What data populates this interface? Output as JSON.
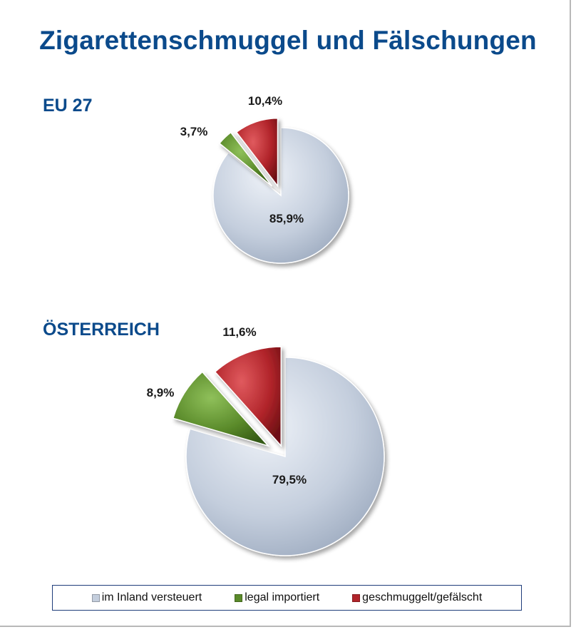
{
  "title": "Zigarettenschmuggel und Fälschungen",
  "chart_data": [
    {
      "type": "pie",
      "title": "EU 27",
      "categories": [
        "im Inland versteuert",
        "legal importiert",
        "geschmuggelt/gefälscht"
      ],
      "values": [
        85.9,
        3.7,
        10.4
      ],
      "labels": [
        "85,9%",
        "3,7%",
        "10,4%"
      ]
    },
    {
      "type": "pie",
      "title": "ÖSTERREICH",
      "categories": [
        "im Inland versteuert",
        "legal importiert",
        "geschmuggelt/gefälscht"
      ],
      "values": [
        79.5,
        8.9,
        11.6
      ],
      "labels": [
        "79,5%",
        "8,9%",
        "11,6%"
      ]
    }
  ],
  "legend": {
    "placement": "bottom",
    "items": [
      {
        "label": "im Inland versteuert",
        "color": "#c4cedd"
      },
      {
        "label": "legal importiert",
        "color": "#5a8a2a"
      },
      {
        "label": "geschmuggelt/gefälscht",
        "color": "#b1242a"
      }
    ]
  },
  "colors": {
    "title": "#0b4a8b",
    "slices": [
      "#c4cedd",
      "#5a8a2a",
      "#b1242a"
    ]
  }
}
